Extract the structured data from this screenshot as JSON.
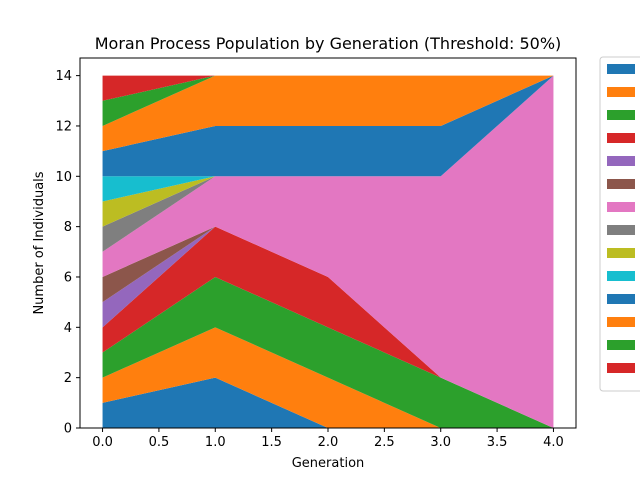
{
  "chart_data": {
    "type": "area",
    "title": "Moran Process Population by Generation (Threshold: 50%)",
    "xlabel": "Generation",
    "ylabel": "Number of Individuals",
    "x": [
      0,
      1,
      2,
      3,
      4
    ],
    "xlim": [
      -0.2,
      4.2
    ],
    "ylim": [
      0,
      14.7
    ],
    "xticks": [
      "0.0",
      "0.5",
      "1.0",
      "1.5",
      "2.0",
      "2.5",
      "3.0",
      "3.5",
      "4.0"
    ],
    "yticks": [
      "0",
      "2",
      "4",
      "6",
      "8",
      "10",
      "12",
      "14"
    ],
    "grid": false,
    "legend_position": "outside-right",
    "series": [
      {
        "color": "#1f77b4",
        "values": [
          1,
          2,
          0,
          0,
          0
        ]
      },
      {
        "color": "#ff7f0e",
        "values": [
          1,
          2,
          2,
          0,
          0
        ]
      },
      {
        "color": "#2ca02c",
        "values": [
          1,
          2,
          2,
          2,
          0
        ]
      },
      {
        "color": "#d62728",
        "values": [
          1,
          2,
          2,
          0,
          0
        ]
      },
      {
        "color": "#9467bd",
        "values": [
          1,
          0,
          0,
          0,
          0
        ]
      },
      {
        "color": "#8c564b",
        "values": [
          1,
          0,
          0,
          0,
          0
        ]
      },
      {
        "color": "#e377c2",
        "values": [
          1,
          2,
          4,
          8,
          14
        ]
      },
      {
        "color": "#7f7f7f",
        "values": [
          1,
          0,
          0,
          0,
          0
        ]
      },
      {
        "color": "#bcbd22",
        "values": [
          1,
          0,
          0,
          0,
          0
        ]
      },
      {
        "color": "#17becf",
        "values": [
          1,
          0,
          0,
          0,
          0
        ]
      },
      {
        "color": "#1f77b4",
        "values": [
          1,
          2,
          2,
          2,
          0
        ]
      },
      {
        "color": "#ff7f0e",
        "values": [
          1,
          2,
          2,
          2,
          0
        ]
      },
      {
        "color": "#2ca02c",
        "values": [
          1,
          0,
          0,
          0,
          0
        ]
      },
      {
        "color": "#d62728",
        "values": [
          1,
          0,
          0,
          0,
          0
        ]
      }
    ]
  }
}
